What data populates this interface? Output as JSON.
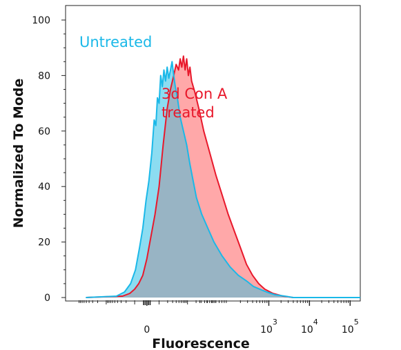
{
  "chart_data": {
    "type": "area",
    "title": "",
    "xlabel": "Fluorescence",
    "ylabel": "Normalized To Mode",
    "ylim": [
      0,
      100
    ],
    "x_scale": "biexponential",
    "y_ticks": [
      "0",
      "20",
      "40",
      "60",
      "80",
      "100"
    ],
    "x_ticks": [
      {
        "base": "0",
        "exp": ""
      },
      {
        "base": "10",
        "exp": "3"
      },
      {
        "base": "10",
        "exp": "4"
      },
      {
        "base": "10",
        "exp": "5"
      }
    ],
    "annotations": {
      "untreated": "Untreated",
      "treated_line1": "3d Con A",
      "treated_line2": "treated"
    },
    "colors": {
      "untreated_line": "#1ab8e8",
      "untreated_fill": "#7fd8f0",
      "treated_line": "#e8182b",
      "treated_fill": "#ff9ea0",
      "overlap_fill": "#98b4c4"
    },
    "x_domain": [
      -2.0,
      5.25
    ],
    "x_note": "x values in decades; 0 = zero, 3 = 10^3, 4 = 10^4, 5 = 10^5",
    "series": [
      {
        "name": "Untreated",
        "points": [
          [
            -1.5,
            0
          ],
          [
            -0.75,
            0.5
          ],
          [
            -0.55,
            2
          ],
          [
            -0.4,
            5
          ],
          [
            -0.28,
            10
          ],
          [
            -0.18,
            18
          ],
          [
            -0.1,
            25
          ],
          [
            -0.02,
            35
          ],
          [
            0.05,
            42
          ],
          [
            0.12,
            52
          ],
          [
            0.18,
            64
          ],
          [
            0.22,
            62
          ],
          [
            0.26,
            72
          ],
          [
            0.3,
            70
          ],
          [
            0.34,
            80
          ],
          [
            0.38,
            76
          ],
          [
            0.42,
            82
          ],
          [
            0.46,
            78
          ],
          [
            0.5,
            83
          ],
          [
            0.54,
            79
          ],
          [
            0.58,
            82
          ],
          [
            0.62,
            85
          ],
          [
            0.66,
            80
          ],
          [
            0.7,
            76
          ],
          [
            0.75,
            72
          ],
          [
            0.82,
            65
          ],
          [
            0.9,
            60
          ],
          [
            0.98,
            55
          ],
          [
            1.06,
            48
          ],
          [
            1.14,
            42
          ],
          [
            1.22,
            36
          ],
          [
            1.35,
            30
          ],
          [
            1.5,
            25
          ],
          [
            1.65,
            20
          ],
          [
            1.85,
            15
          ],
          [
            2.05,
            11
          ],
          [
            2.25,
            8
          ],
          [
            2.45,
            6
          ],
          [
            2.62,
            4
          ],
          [
            2.78,
            3
          ],
          [
            2.95,
            2
          ],
          [
            3.15,
            1
          ],
          [
            3.4,
            0.5
          ],
          [
            3.6,
            0
          ],
          [
            5.25,
            0
          ]
        ]
      },
      {
        "name": "3d Con A treated",
        "points": [
          [
            -1.5,
            0
          ],
          [
            -0.6,
            0.5
          ],
          [
            -0.42,
            1.5
          ],
          [
            -0.3,
            3
          ],
          [
            -0.2,
            5
          ],
          [
            -0.1,
            8
          ],
          [
            0.0,
            14
          ],
          [
            0.1,
            22
          ],
          [
            0.2,
            30
          ],
          [
            0.3,
            40
          ],
          [
            0.4,
            55
          ],
          [
            0.5,
            68
          ],
          [
            0.58,
            75
          ],
          [
            0.66,
            80
          ],
          [
            0.72,
            84
          ],
          [
            0.78,
            82
          ],
          [
            0.82,
            86
          ],
          [
            0.86,
            83
          ],
          [
            0.9,
            87
          ],
          [
            0.94,
            82
          ],
          [
            0.98,
            86
          ],
          [
            1.02,
            80
          ],
          [
            1.06,
            83
          ],
          [
            1.1,
            78
          ],
          [
            1.18,
            74
          ],
          [
            1.28,
            68
          ],
          [
            1.4,
            60
          ],
          [
            1.55,
            52
          ],
          [
            1.7,
            44
          ],
          [
            1.85,
            37
          ],
          [
            2.0,
            30
          ],
          [
            2.15,
            24
          ],
          [
            2.3,
            18
          ],
          [
            2.45,
            12
          ],
          [
            2.6,
            8
          ],
          [
            2.75,
            5
          ],
          [
            2.9,
            3
          ],
          [
            3.1,
            1.5
          ],
          [
            3.35,
            0.5
          ],
          [
            3.6,
            0
          ],
          [
            5.25,
            0
          ]
        ]
      }
    ]
  }
}
